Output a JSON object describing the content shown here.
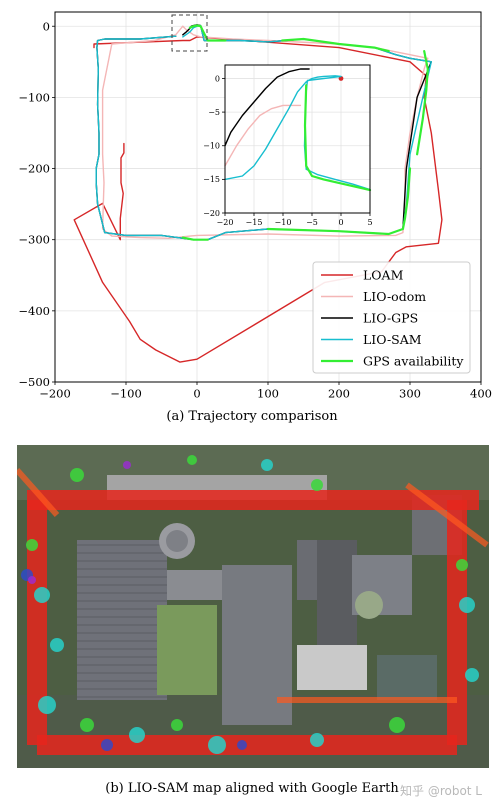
{
  "figure": {
    "caption_a": "(a) Trajectory comparison",
    "caption_b": "(b) LIO-SAM map aligned with Google Earth",
    "watermark": "知乎 @robot L"
  },
  "chart_data": [
    {
      "type": "line",
      "xlim": [
        -200,
        400
      ],
      "ylim": [
        -500,
        20
      ],
      "xticks": [
        -200,
        -100,
        0,
        100,
        200,
        300,
        400
      ],
      "yticks": [
        0,
        -100,
        -200,
        -300,
        -400,
        -500
      ],
      "xtick_labels": [
        "−200",
        "−100",
        "0",
        "100",
        "200",
        "300",
        "400"
      ],
      "ytick_labels": [
        "0",
        "−100",
        "−200",
        "−300",
        "−400",
        "−500"
      ],
      "grid": true,
      "legend_position": "lower-right",
      "title": "",
      "xlabel": "",
      "ylabel": "",
      "series": [
        {
          "name": "LOAM",
          "color": "#d62728",
          "x": [
            -103,
            -103,
            -107,
            -107,
            -104,
            -108,
            -108,
            -108,
            -133,
            -173,
            -133,
            -95,
            -80,
            -58,
            -24,
            0,
            80,
            180,
            260,
            280,
            295,
            340,
            345,
            340,
            330,
            320,
            323,
            300,
            200,
            0,
            -10,
            -20,
            -145,
            -145
          ],
          "y": [
            -165,
            -178,
            -185,
            -220,
            -235,
            -270,
            -285,
            -300,
            -249,
            -272,
            -360,
            -415,
            -440,
            -455,
            -472,
            -468,
            -420,
            -360,
            -345,
            -318,
            -310,
            -305,
            -272,
            -230,
            -150,
            -100,
            -70,
            -50,
            -30,
            -15,
            -20,
            -20,
            -25,
            -30
          ]
        },
        {
          "name": "LIO-odom",
          "color": "#f4b6b6",
          "x": [
            -20,
            -30,
            -60,
            -120,
            -133,
            -133,
            -133,
            -131,
            -132,
            -133,
            -120,
            -80,
            -40,
            -10,
            0,
            100,
            200,
            280,
            290,
            293,
            293,
            300,
            310,
            320,
            325,
            300,
            250,
            200,
            100,
            50,
            20,
            5,
            -5,
            -15,
            -20
          ],
          "y": [
            0,
            -12,
            -20,
            -25,
            -90,
            -140,
            -180,
            -220,
            -250,
            -285,
            -295,
            -297,
            -298,
            -295,
            -294,
            -292,
            -295,
            -294,
            -290,
            -250,
            -200,
            -150,
            -100,
            -60,
            -45,
            -40,
            -30,
            -25,
            -20,
            -18,
            -16,
            -15,
            -12,
            -5,
            0
          ]
        },
        {
          "name": "LIO-GPS",
          "color": "#000000",
          "x": [
            -20,
            -15,
            -10,
            -8,
            -5,
            0,
            5,
            10,
            40,
            60,
            100,
            150,
            200,
            250,
            280,
            300,
            330,
            310,
            295,
            290,
            270,
            200,
            100,
            40,
            15,
            -5,
            -50,
            -100,
            -130,
            -140,
            -142,
            -142,
            -138,
            -138,
            -140,
            -139,
            -141,
            -140,
            -130,
            -80,
            -30
          ],
          "y": [
            -12,
            -8,
            -3,
            0,
            1,
            2,
            1,
            -20,
            -20,
            -20,
            -22,
            -18,
            -25,
            -30,
            -40,
            -45,
            -50,
            -100,
            -200,
            -285,
            -292,
            -288,
            -285,
            -290,
            -300,
            -300,
            -294,
            -294,
            -290,
            -250,
            -220,
            -200,
            -180,
            -150,
            -110,
            -60,
            -30,
            -20,
            -18,
            -18,
            -14
          ]
        },
        {
          "name": "LIO-SAM",
          "color": "#17becf",
          "x": [
            -20,
            -10,
            -5,
            0,
            5,
            10,
            40,
            60,
            100,
            150,
            200,
            250,
            280,
            300,
            330,
            318,
            300,
            295,
            290,
            270,
            200,
            100,
            40,
            15,
            -5,
            -50,
            -100,
            -130,
            -140,
            -142,
            -142,
            -138,
            -138,
            -140,
            -139,
            -141,
            -140,
            -130,
            -80,
            -30
          ],
          "y": [
            -15,
            -8,
            -2,
            0,
            1,
            -20,
            -20,
            -20,
            -22,
            -18,
            -25,
            -30,
            -40,
            -45,
            -50,
            -100,
            -180,
            -250,
            -285,
            -292,
            -288,
            -285,
            -290,
            -300,
            -300,
            -294,
            -294,
            -290,
            -250,
            -220,
            -200,
            -180,
            -150,
            -110,
            -60,
            -30,
            -20,
            -18,
            -18,
            -14
          ]
        },
        {
          "name": "GPS availability",
          "color": "#33ee33",
          "segments": [
            {
              "x": [
                -10,
                -5,
                0,
                5,
                10,
                15,
                30,
                40
              ],
              "y": [
                -2,
                0,
                1,
                0,
                -10,
                -20,
                -20,
                -20
              ]
            },
            {
              "x": [
                120,
                150,
                200,
                250,
                270
              ],
              "y": [
                -20,
                -18,
                -25,
                -30,
                -35
              ]
            },
            {
              "x": [
                320,
                322,
                325,
                323,
                318,
                310
              ],
              "y": [
                -35,
                -45,
                -60,
                -90,
                -130,
                -180
              ]
            },
            {
              "x": [
                300,
                297,
                293,
                290,
                270,
                200,
                100
              ],
              "y": [
                -200,
                -240,
                -270,
                -285,
                -292,
                -288,
                -285
              ]
            },
            {
              "x": [
                15,
                -5,
                -20
              ],
              "y": [
                -300,
                -300,
                -297
              ]
            }
          ]
        }
      ]
    },
    {
      "type": "line",
      "xlim": [
        -20,
        5
      ],
      "ylim": [
        -20,
        2
      ],
      "xticks": [
        -20,
        -15,
        -10,
        -5,
        0,
        5
      ],
      "yticks": [
        0,
        -5,
        -10,
        -15,
        -20
      ],
      "xtick_labels": [
        "−20",
        "−15",
        "−10",
        "−5",
        "0",
        "5"
      ],
      "ytick_labels": [
        "0",
        "−5",
        "−10",
        "−15",
        "−20"
      ],
      "grid": true,
      "title": "",
      "xlabel": "",
      "ylabel": "",
      "series": [
        {
          "name": "LOAM",
          "color": "#d62728",
          "x": [
            0
          ],
          "y": [
            0
          ]
        },
        {
          "name": "LIO-odom",
          "color": "#f4b6b6",
          "x": [
            -20,
            -18,
            -16,
            -14,
            -12,
            -10,
            -7
          ],
          "y": [
            -13,
            -10,
            -7.5,
            -5.5,
            -4.5,
            -4,
            -4
          ]
        },
        {
          "name": "LIO-GPS",
          "color": "#000000",
          "x": [
            -20,
            -19,
            -17,
            -15,
            -13,
            -11,
            -9,
            -7,
            -5.5
          ],
          "y": [
            -10,
            -8,
            -5.5,
            -3.5,
            -1.5,
            0.2,
            1,
            1.4,
            1.4
          ]
        },
        {
          "name": "LIO-SAM",
          "color": "#17becf",
          "x": [
            -20,
            -17,
            -15,
            -13,
            -11,
            -9,
            -7.5,
            -6,
            -5,
            -4,
            -3,
            -1,
            0,
            -5.8,
            -6,
            -6.3,
            -6,
            -4,
            -1,
            2,
            5
          ],
          "y": [
            -15,
            -14.5,
            -13,
            -10.5,
            -7.5,
            -4.5,
            -2,
            -0.5,
            0,
            0.2,
            0.3,
            0.4,
            0.3,
            -0.3,
            -2,
            -10,
            -13.5,
            -14.3,
            -15,
            -15.7,
            -16.5
          ]
        },
        {
          "name": "GPS availability",
          "color": "#33ee33",
          "segments": [
            {
              "x": [
                -6,
                -6.2,
                -6,
                -5,
                -3,
                0,
                2,
                5
              ],
              "y": [
                -1,
                -7,
                -13,
                -14.5,
                -15,
                -15.6,
                -16,
                -16.6
              ]
            }
          ]
        }
      ]
    }
  ]
}
